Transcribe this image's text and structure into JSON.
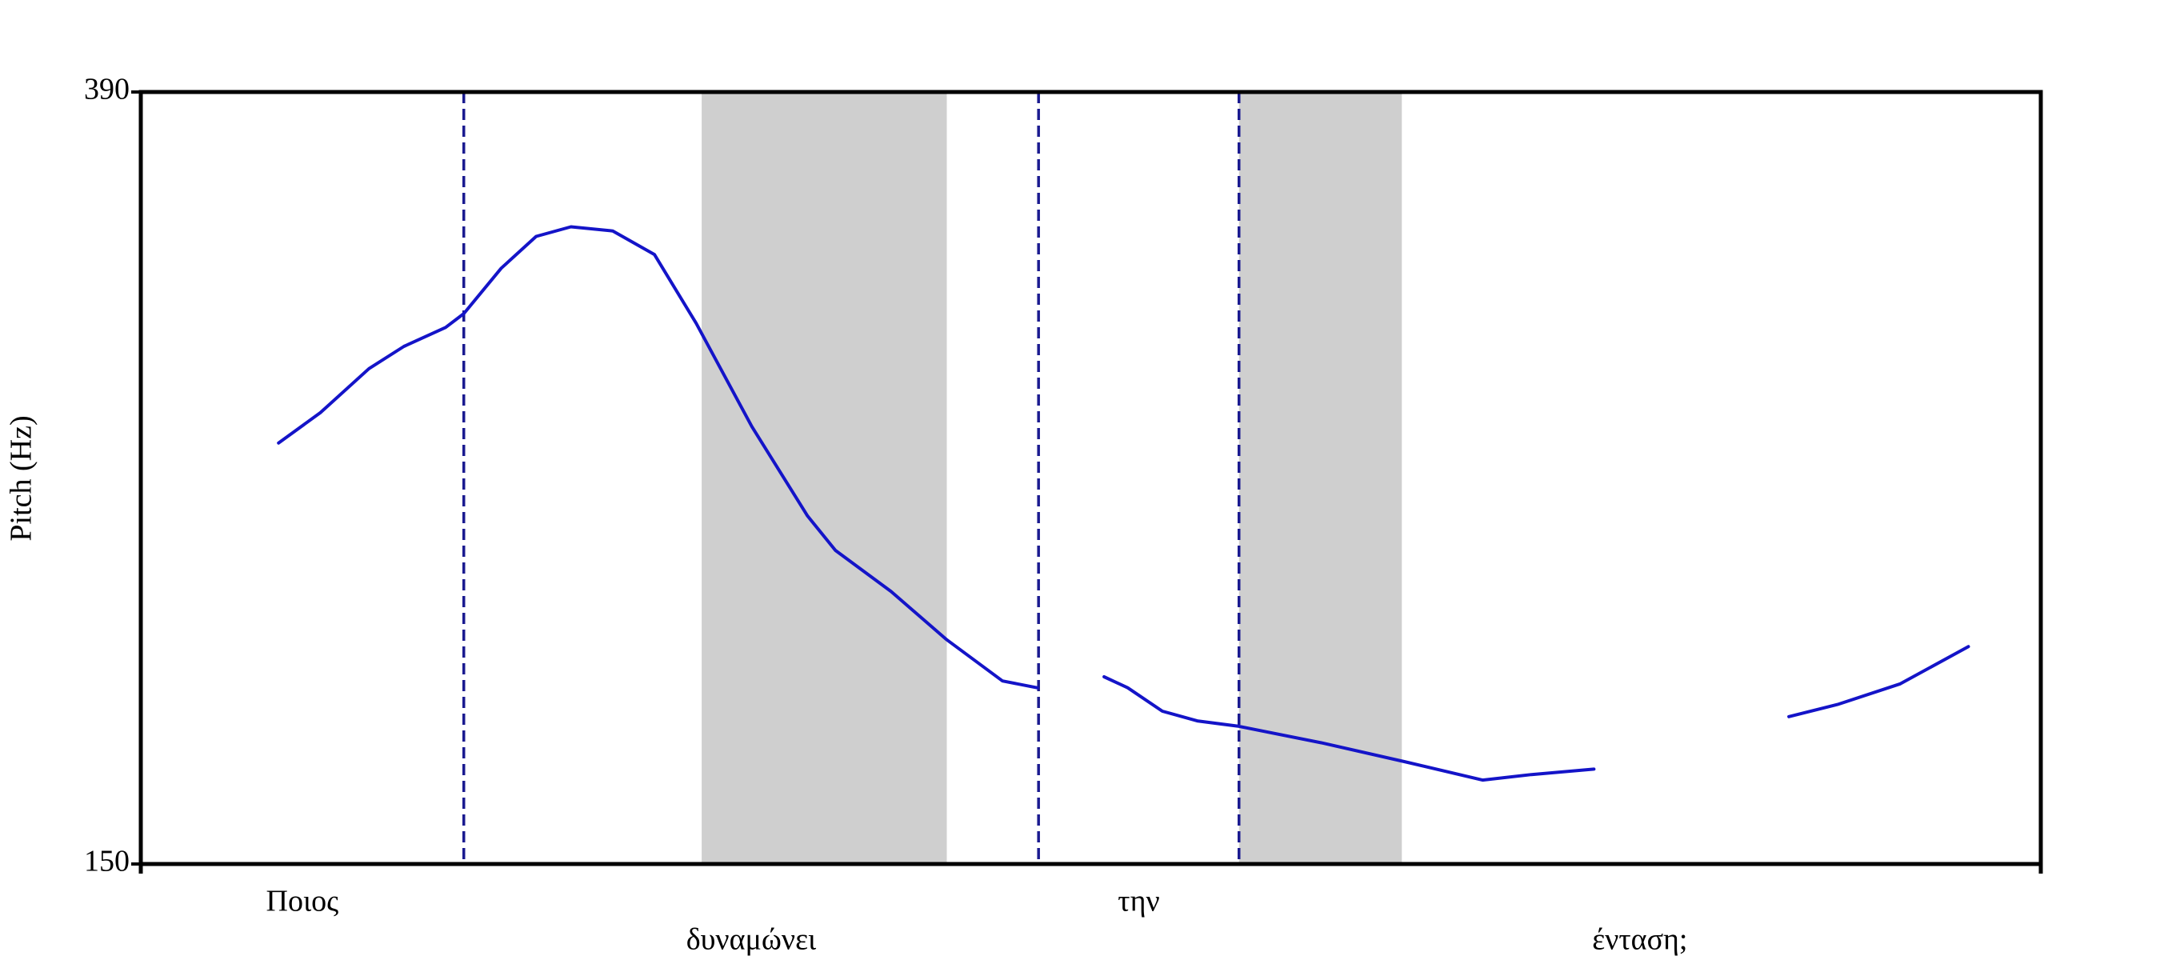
{
  "chart_data": {
    "type": "line",
    "ylabel": "Pitch (Hz)",
    "xlim": [
      0,
      1
    ],
    "ylim": [
      150,
      390
    ],
    "yticks": [
      150,
      390
    ],
    "color": "#1414c8",
    "x": [
      0.0725,
      0.0945,
      0.1201,
      0.1385,
      0.1604,
      0.17,
      0.1897,
      0.2081,
      0.2264,
      0.2484,
      0.2703,
      0.2923,
      0.3216,
      0.3509,
      0.3656,
      0.3949,
      0.4242,
      0.4535,
      0.4718,
      0.49,
      0.507,
      0.5194,
      0.5377,
      0.556,
      0.578,
      0.622,
      0.6659,
      0.7062,
      0.7319,
      0.7648,
      0.82,
      0.8674,
      0.893,
      0.926,
      0.9619
    ],
    "values": [
      280.9,
      290.3,
      304.0,
      310.9,
      316.8,
      321.1,
      335.2,
      345.1,
      348.1,
      346.8,
      339.5,
      318.1,
      286.0,
      258.2,
      247.5,
      234.7,
      219.7,
      206.9,
      204.8,
      null,
      208.2,
      204.8,
      197.5,
      194.5,
      192.8,
      187.6,
      181.7,
      176.1,
      177.8,
      179.5,
      null,
      195.8,
      199.6,
      206.0,
      217.6
    ],
    "words": [
      {
        "label": "Ποιος",
        "start": 0,
        "end": 0.17
      },
      {
        "label": "δυναμώνει",
        "start": 0.17,
        "end": 0.4725
      },
      {
        "label": "την",
        "start": 0.4725,
        "end": 0.578
      },
      {
        "label": "ένταση;",
        "start": 0.578,
        "end": 1
      }
    ],
    "highlights": [
      [
        0.2952,
        0.4242
      ],
      [
        0.578,
        0.6637
      ]
    ],
    "highlight_color": "#cfcfcf",
    "boundary_color": "#1a1a90"
  }
}
